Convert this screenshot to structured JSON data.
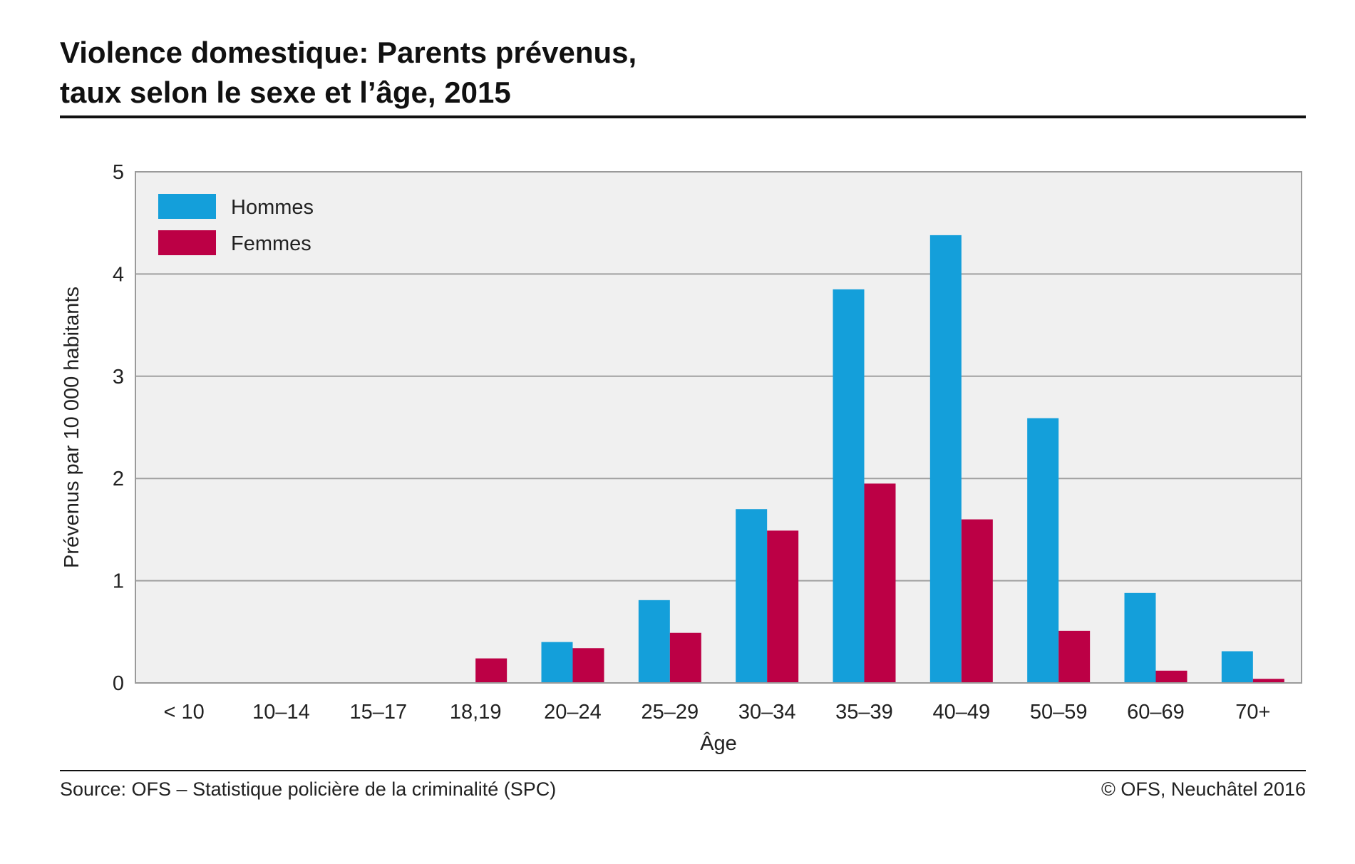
{
  "title_lines": [
    "Violence domestique: Parents prévenus,",
    "taux selon le sexe et l’âge, 2015"
  ],
  "footer": {
    "source": "Source: OFS – Statistique policière de la criminalité (SPC)",
    "copyright": "© OFS, Neuchâtel 2016"
  },
  "chart_data": {
    "type": "bar",
    "title": "Violence domestique: Parents prévenus, taux selon le sexe et l’âge, 2015",
    "xlabel": "Âge",
    "ylabel": "Prévenus par 10 000 habitants",
    "ylim": [
      0,
      5
    ],
    "yticks": [
      0,
      1,
      2,
      3,
      4,
      5
    ],
    "grid": true,
    "legend_position": "top-left",
    "categories": [
      "< 10",
      "10–14",
      "15–17",
      "18,19",
      "20–24",
      "25–29",
      "30–34",
      "35–39",
      "40–49",
      "50–59",
      "60–69",
      "70+"
    ],
    "series": [
      {
        "name": "Hommes",
        "color": "#149fda",
        "values": [
          0,
          0,
          0,
          0,
          0.4,
          0.81,
          1.7,
          3.85,
          4.38,
          2.59,
          0.88,
          0.31
        ]
      },
      {
        "name": "Femmes",
        "color": "#bc0045",
        "values": [
          0,
          0,
          0,
          0.24,
          0.34,
          0.49,
          1.49,
          1.95,
          1.6,
          0.51,
          0.12,
          0.04
        ]
      }
    ],
    "colors": {
      "plot_background": "#f0f0f0",
      "gridline": "#a0a0a0",
      "frame": "#9a9a9a"
    }
  }
}
